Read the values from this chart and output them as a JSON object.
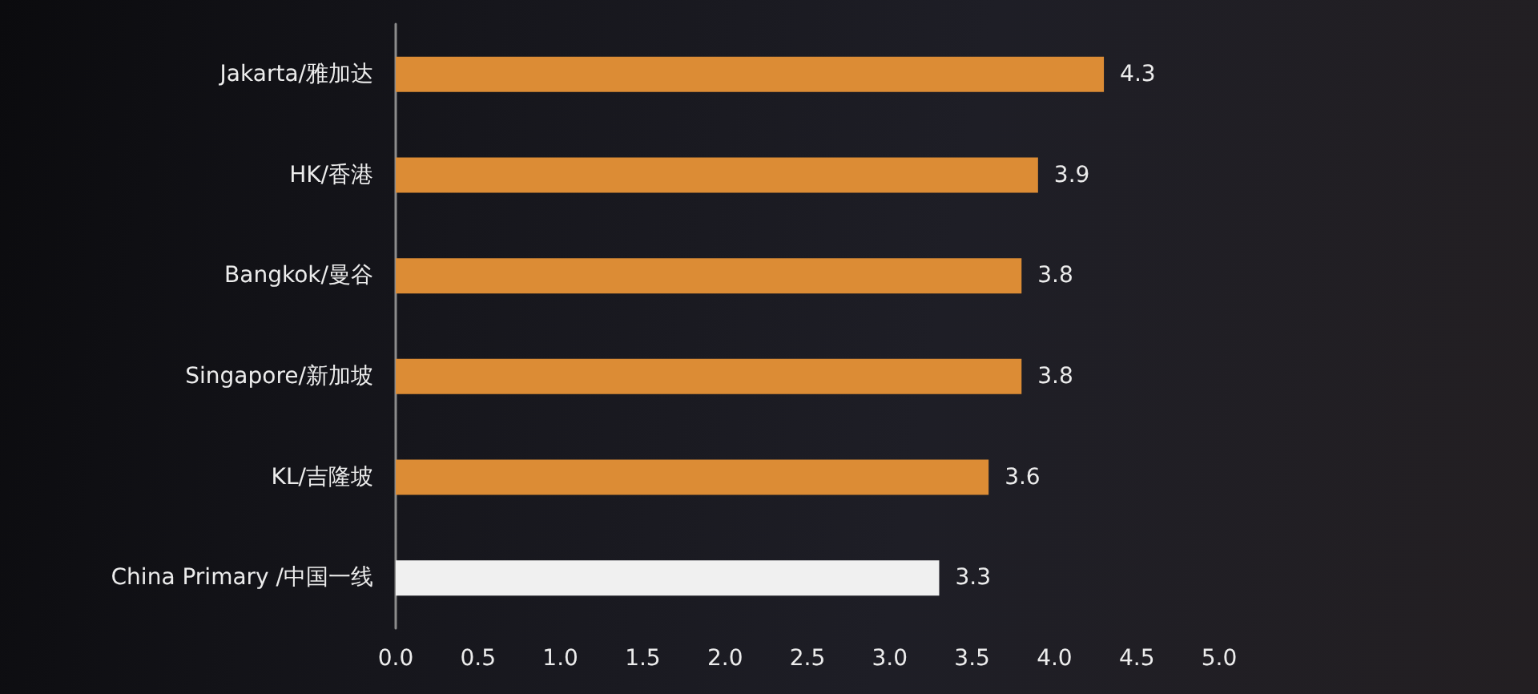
{
  "chart_data": {
    "type": "bar",
    "orientation": "horizontal",
    "categories": [
      "Jakarta/雅加达",
      "HK/香港",
      "Bangkok/曼谷",
      "Singapore/新加坡",
      "KL/吉隆坡",
      "China Primary /中国一线"
    ],
    "values": [
      4.3,
      3.9,
      3.8,
      3.8,
      3.6,
      3.3
    ],
    "colors": [
      "#dc8c35",
      "#dc8c35",
      "#dc8c35",
      "#dc8c35",
      "#dc8c35",
      "#f0f0f0"
    ],
    "xlim": [
      0,
      5
    ],
    "xticks": [
      {
        "value": 0,
        "label": "0.0"
      },
      {
        "value": 0.5,
        "label": "0.5"
      },
      {
        "value": 1,
        "label": "1.0"
      },
      {
        "value": 1.5,
        "label": "1.5"
      },
      {
        "value": 2,
        "label": "2.0"
      },
      {
        "value": 2.5,
        "label": "2.5"
      },
      {
        "value": 3,
        "label": "3.0"
      },
      {
        "value": 3.5,
        "label": "3.5"
      },
      {
        "value": 4,
        "label": "4.0"
      },
      {
        "value": 4.5,
        "label": "4.5"
      },
      {
        "value": 5,
        "label": "5.0"
      }
    ],
    "data_labels": true
  }
}
